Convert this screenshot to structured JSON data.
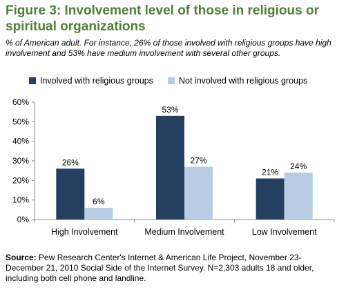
{
  "title": "Figure 3: Involvement level of those in religious or spiritual organizations",
  "subtitle": "% of American adult. For instance, 26% of those involved with religious groups have high involvement and 53% have medium involvement with several other groups.",
  "source": {
    "label": "Source:",
    "text": "Pew Research Center's Internet & American Life Project, November 23-December 21, 2010 Social Side of the Internet Survey. N=2,303 adults 18 and older, including both cell phone and landline."
  },
  "chart_data": {
    "type": "bar",
    "categories": [
      "High Involvement",
      "Medium Involvement",
      "Low Involvement"
    ],
    "series": [
      {
        "name": "Involved with religious groups",
        "values": [
          26,
          53,
          21
        ],
        "labels": [
          "26%",
          "53%",
          "21%"
        ],
        "color": "#243f60"
      },
      {
        "name": "Not involved with religious groups",
        "values": [
          6,
          27,
          24
        ],
        "labels": [
          "6%",
          "27%",
          "24%"
        ],
        "color": "#b8cce4"
      }
    ],
    "ylim": [
      0,
      60
    ],
    "yticks": [
      0,
      10,
      20,
      30,
      40,
      50,
      60
    ],
    "ytick_labels": [
      "0%",
      "10%",
      "20%",
      "30%",
      "40%",
      "50%",
      "60%"
    ],
    "grid": false,
    "legend": "top"
  }
}
